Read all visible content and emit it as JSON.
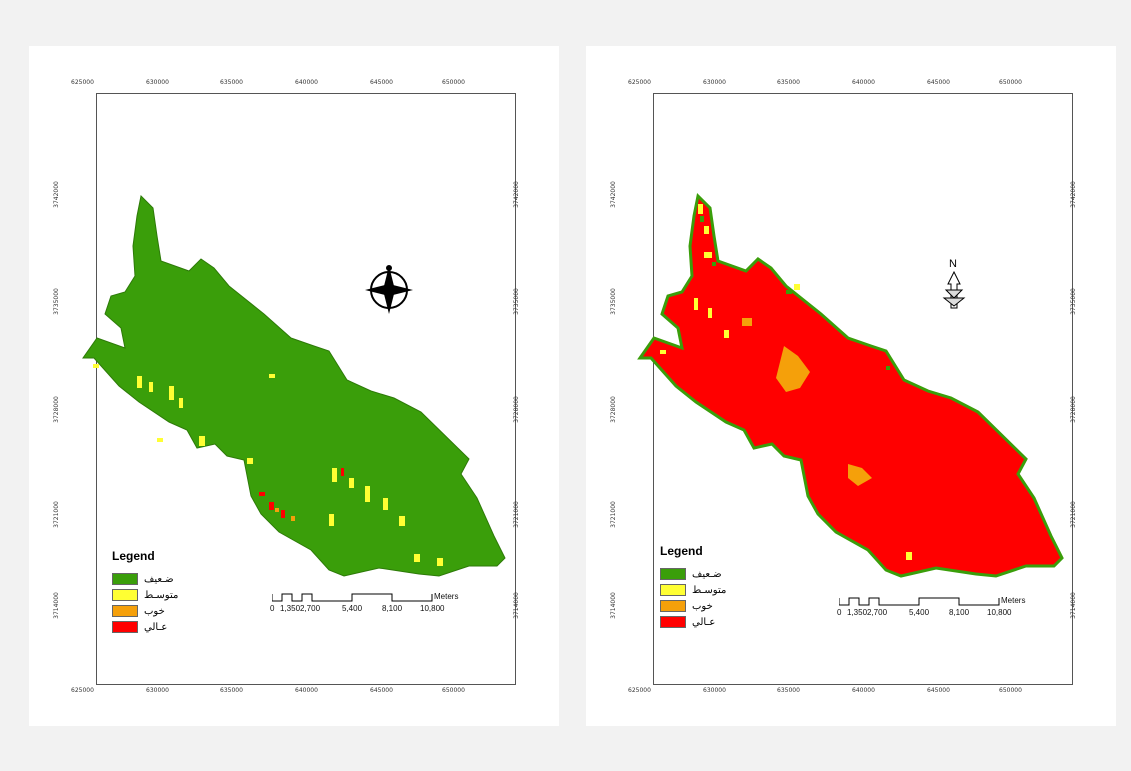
{
  "maps": [
    {
      "id": "left",
      "x_ticks": [
        "625000",
        "630000",
        "635000",
        "640000",
        "645000",
        "650000"
      ],
      "y_ticks": [
        "3742000",
        "3735000",
        "3728000",
        "3721000",
        "3714000"
      ],
      "legend": {
        "title": "Legend",
        "items": [
          {
            "label": "ضـعيف",
            "color": "#3a9e0a"
          },
          {
            "label": "متوسـط",
            "color": "#ffff33"
          },
          {
            "label": "خوب",
            "color": "#f5a00a"
          },
          {
            "label": "عـالي",
            "color": "#ff0000"
          }
        ]
      },
      "scale": {
        "labels": [
          "0",
          "1,350",
          "2,700",
          "5,400",
          "8,100",
          "10,800"
        ],
        "unit": "Meters"
      },
      "north_arrow": "compass-north-icon",
      "dominant_color": "#3a9e0a"
    },
    {
      "id": "right",
      "x_ticks": [
        "625000",
        "630000",
        "635000",
        "640000",
        "645000",
        "650000"
      ],
      "y_ticks": [
        "3742000",
        "3735000",
        "3728000",
        "3721000",
        "3714000"
      ],
      "legend": {
        "title": "Legend",
        "items": [
          {
            "label": "ضـعيف",
            "color": "#3a9e0a"
          },
          {
            "label": "متوسـط",
            "color": "#ffff33"
          },
          {
            "label": "خوب",
            "color": "#f5a00a"
          },
          {
            "label": "عـالي",
            "color": "#ff0000"
          }
        ]
      },
      "scale": {
        "labels": [
          "0",
          "1,350",
          "2,700",
          "5,400",
          "8,100",
          "10,800"
        ],
        "unit": "Meters"
      },
      "north_label": "N",
      "north_arrow": "north-arrow-icon",
      "dominant_color": "#ff0000"
    }
  ]
}
